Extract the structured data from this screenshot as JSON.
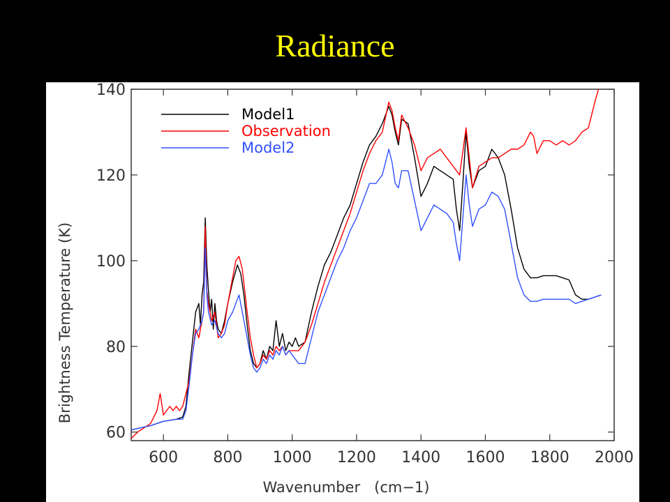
{
  "slide": {
    "title": "Radiance"
  },
  "chart_data": {
    "type": "line",
    "title": "Radiance",
    "xlabel": "Wavenumber   (cm−1)",
    "ylabel": "Brightness Temperature (K)",
    "xlim": [
      500,
      2000
    ],
    "ylim": [
      58,
      140
    ],
    "xticks": [
      600,
      800,
      1000,
      1200,
      1400,
      1600,
      1800,
      2000
    ],
    "yticks": [
      60,
      80,
      100,
      120,
      140
    ],
    "grid": false,
    "legend": "top-left",
    "series": [
      {
        "name": "Model1",
        "color": "#000000",
        "points": [
          [
            500,
            60.5
          ],
          [
            560,
            61.5
          ],
          [
            600,
            62.5
          ],
          [
            640,
            63
          ],
          [
            660,
            63.5
          ],
          [
            670,
            66
          ],
          [
            680,
            74
          ],
          [
            690,
            81
          ],
          [
            700,
            88
          ],
          [
            710,
            90
          ],
          [
            715,
            85
          ],
          [
            720,
            92
          ],
          [
            725,
            95
          ],
          [
            730,
            110
          ],
          [
            735,
            99
          ],
          [
            740,
            93
          ],
          [
            745,
            88
          ],
          [
            750,
            91
          ],
          [
            755,
            84
          ],
          [
            760,
            90
          ],
          [
            765,
            86
          ],
          [
            770,
            84
          ],
          [
            780,
            83
          ],
          [
            790,
            86
          ],
          [
            800,
            90
          ],
          [
            815,
            95
          ],
          [
            830,
            99
          ],
          [
            840,
            97
          ],
          [
            850,
            92
          ],
          [
            860,
            85
          ],
          [
            870,
            79
          ],
          [
            880,
            76
          ],
          [
            890,
            75
          ],
          [
            900,
            76
          ],
          [
            910,
            79
          ],
          [
            920,
            77
          ],
          [
            930,
            80
          ],
          [
            940,
            79
          ],
          [
            950,
            86
          ],
          [
            960,
            80
          ],
          [
            970,
            83
          ],
          [
            980,
            79
          ],
          [
            990,
            81
          ],
          [
            1000,
            80
          ],
          [
            1010,
            82
          ],
          [
            1020,
            80
          ],
          [
            1040,
            81
          ],
          [
            1060,
            88
          ],
          [
            1080,
            94
          ],
          [
            1100,
            99
          ],
          [
            1120,
            102
          ],
          [
            1140,
            106
          ],
          [
            1160,
            110
          ],
          [
            1180,
            113
          ],
          [
            1200,
            118
          ],
          [
            1220,
            123
          ],
          [
            1240,
            127
          ],
          [
            1260,
            129
          ],
          [
            1280,
            132
          ],
          [
            1300,
            136
          ],
          [
            1310,
            134
          ],
          [
            1320,
            130
          ],
          [
            1330,
            127
          ],
          [
            1340,
            133
          ],
          [
            1360,
            132
          ],
          [
            1380,
            124
          ],
          [
            1400,
            115
          ],
          [
            1420,
            118
          ],
          [
            1440,
            122
          ],
          [
            1460,
            121
          ],
          [
            1480,
            120
          ],
          [
            1500,
            119
          ],
          [
            1510,
            112
          ],
          [
            1520,
            107
          ],
          [
            1530,
            118
          ],
          [
            1540,
            130
          ],
          [
            1550,
            122
          ],
          [
            1560,
            117
          ],
          [
            1580,
            121
          ],
          [
            1600,
            122
          ],
          [
            1620,
            126
          ],
          [
            1640,
            124
          ],
          [
            1660,
            120
          ],
          [
            1680,
            112
          ],
          [
            1700,
            103
          ],
          [
            1720,
            98
          ],
          [
            1740,
            96
          ],
          [
            1760,
            96
          ],
          [
            1780,
            96.5
          ],
          [
            1800,
            96.5
          ],
          [
            1820,
            96.5
          ],
          [
            1840,
            96
          ],
          [
            1860,
            95.5
          ],
          [
            1880,
            92
          ],
          [
            1900,
            91
          ],
          [
            1920,
            91
          ],
          [
            1960,
            92
          ]
        ]
      },
      {
        "name": "Observation",
        "color": "#ff0000",
        "points": [
          [
            500,
            58.5
          ],
          [
            520,
            60
          ],
          [
            560,
            62
          ],
          [
            580,
            65
          ],
          [
            590,
            69
          ],
          [
            600,
            64
          ],
          [
            610,
            65
          ],
          [
            620,
            66
          ],
          [
            630,
            65
          ],
          [
            640,
            66
          ],
          [
            650,
            65
          ],
          [
            660,
            66
          ],
          [
            670,
            69
          ],
          [
            680,
            72
          ],
          [
            690,
            78
          ],
          [
            700,
            84
          ],
          [
            710,
            82
          ],
          [
            720,
            86
          ],
          [
            725,
            88
          ],
          [
            730,
            108
          ],
          [
            735,
            93
          ],
          [
            740,
            90
          ],
          [
            750,
            86
          ],
          [
            760,
            88
          ],
          [
            770,
            82
          ],
          [
            780,
            83
          ],
          [
            790,
            85
          ],
          [
            800,
            90
          ],
          [
            815,
            96
          ],
          [
            825,
            100
          ],
          [
            835,
            101
          ],
          [
            845,
            98
          ],
          [
            860,
            88
          ],
          [
            870,
            82
          ],
          [
            880,
            78
          ],
          [
            890,
            75
          ],
          [
            900,
            76
          ],
          [
            910,
            78
          ],
          [
            920,
            77
          ],
          [
            930,
            79
          ],
          [
            940,
            78
          ],
          [
            950,
            80
          ],
          [
            960,
            79
          ],
          [
            970,
            80
          ],
          [
            980,
            78
          ],
          [
            990,
            79
          ],
          [
            1000,
            79
          ],
          [
            1020,
            79
          ],
          [
            1040,
            81
          ],
          [
            1060,
            85
          ],
          [
            1080,
            90
          ],
          [
            1100,
            95
          ],
          [
            1120,
            99
          ],
          [
            1140,
            103
          ],
          [
            1160,
            107
          ],
          [
            1180,
            111
          ],
          [
            1200,
            116
          ],
          [
            1220,
            121
          ],
          [
            1240,
            125
          ],
          [
            1260,
            128
          ],
          [
            1280,
            130
          ],
          [
            1300,
            137
          ],
          [
            1310,
            135
          ],
          [
            1320,
            131
          ],
          [
            1330,
            128
          ],
          [
            1340,
            134
          ],
          [
            1360,
            131
          ],
          [
            1380,
            127
          ],
          [
            1400,
            121
          ],
          [
            1420,
            124
          ],
          [
            1440,
            125
          ],
          [
            1460,
            126
          ],
          [
            1480,
            124
          ],
          [
            1500,
            122
          ],
          [
            1520,
            120
          ],
          [
            1540,
            131
          ],
          [
            1550,
            124
          ],
          [
            1560,
            117
          ],
          [
            1580,
            122
          ],
          [
            1600,
            123
          ],
          [
            1620,
            124
          ],
          [
            1640,
            124
          ],
          [
            1660,
            125
          ],
          [
            1680,
            126
          ],
          [
            1700,
            126
          ],
          [
            1720,
            127
          ],
          [
            1740,
            130
          ],
          [
            1750,
            129
          ],
          [
            1760,
            125
          ],
          [
            1780,
            128
          ],
          [
            1800,
            128
          ],
          [
            1820,
            127
          ],
          [
            1840,
            128
          ],
          [
            1860,
            127
          ],
          [
            1880,
            128
          ],
          [
            1900,
            130
          ],
          [
            1920,
            131
          ],
          [
            1930,
            134
          ],
          [
            1940,
            137
          ],
          [
            1955,
            141
          ]
        ]
      },
      {
        "name": "Model2",
        "color": "#3050ff",
        "points": [
          [
            500,
            60.5
          ],
          [
            560,
            61.5
          ],
          [
            600,
            62.5
          ],
          [
            640,
            63
          ],
          [
            660,
            63
          ],
          [
            670,
            65
          ],
          [
            680,
            71
          ],
          [
            690,
            78
          ],
          [
            700,
            83
          ],
          [
            710,
            84
          ],
          [
            720,
            86
          ],
          [
            725,
            88
          ],
          [
            730,
            103
          ],
          [
            735,
            92
          ],
          [
            740,
            88
          ],
          [
            750,
            85
          ],
          [
            760,
            86
          ],
          [
            770,
            83
          ],
          [
            780,
            82
          ],
          [
            790,
            83
          ],
          [
            800,
            86
          ],
          [
            815,
            88
          ],
          [
            825,
            90
          ],
          [
            835,
            92
          ],
          [
            845,
            88
          ],
          [
            860,
            82
          ],
          [
            870,
            78
          ],
          [
            880,
            75
          ],
          [
            890,
            74
          ],
          [
            900,
            75
          ],
          [
            910,
            77
          ],
          [
            920,
            76
          ],
          [
            930,
            78
          ],
          [
            940,
            77
          ],
          [
            950,
            79
          ],
          [
            960,
            78
          ],
          [
            970,
            80
          ],
          [
            980,
            78
          ],
          [
            990,
            79
          ],
          [
            1000,
            78
          ],
          [
            1010,
            77
          ],
          [
            1020,
            76
          ],
          [
            1040,
            76
          ],
          [
            1060,
            82
          ],
          [
            1080,
            88
          ],
          [
            1100,
            92
          ],
          [
            1120,
            96
          ],
          [
            1140,
            100
          ],
          [
            1160,
            103
          ],
          [
            1180,
            107
          ],
          [
            1200,
            110
          ],
          [
            1220,
            114
          ],
          [
            1240,
            118
          ],
          [
            1260,
            118
          ],
          [
            1280,
            120
          ],
          [
            1300,
            126
          ],
          [
            1310,
            123
          ],
          [
            1320,
            118
          ],
          [
            1330,
            117
          ],
          [
            1340,
            121
          ],
          [
            1360,
            121
          ],
          [
            1380,
            114
          ],
          [
            1400,
            107
          ],
          [
            1420,
            110
          ],
          [
            1440,
            113
          ],
          [
            1460,
            112
          ],
          [
            1480,
            111
          ],
          [
            1500,
            109
          ],
          [
            1510,
            104
          ],
          [
            1520,
            100
          ],
          [
            1530,
            110
          ],
          [
            1540,
            120
          ],
          [
            1550,
            113
          ],
          [
            1560,
            108
          ],
          [
            1580,
            112
          ],
          [
            1600,
            113
          ],
          [
            1620,
            116
          ],
          [
            1640,
            115
          ],
          [
            1660,
            112
          ],
          [
            1680,
            104
          ],
          [
            1700,
            96
          ],
          [
            1720,
            92
          ],
          [
            1740,
            90.5
          ],
          [
            1760,
            90.5
          ],
          [
            1780,
            91
          ],
          [
            1800,
            91
          ],
          [
            1820,
            91
          ],
          [
            1840,
            91
          ],
          [
            1860,
            91
          ],
          [
            1880,
            90
          ],
          [
            1900,
            90.5
          ],
          [
            1920,
            91
          ],
          [
            1960,
            92
          ]
        ]
      }
    ]
  }
}
